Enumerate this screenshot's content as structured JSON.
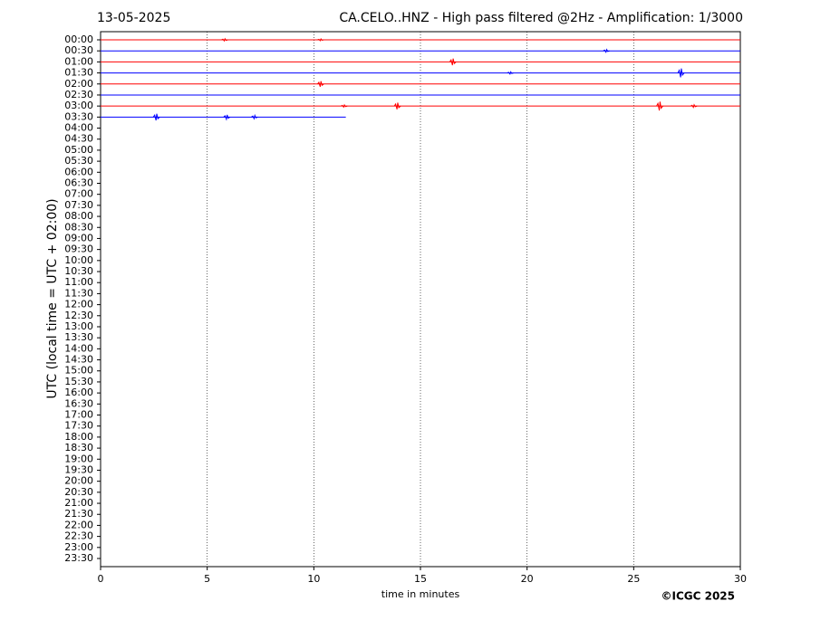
{
  "chart_data": {
    "type": "helicorder",
    "title_left": "13-05-2025",
    "title": "CA.CELO..HNZ - High pass filtered @2Hz - Amplification: 1/3000",
    "ylabel": "UTC (local time = UTC + 02:00)",
    "xlabel": "time in minutes",
    "credit": "©ICGC 2025",
    "xlim": [
      0,
      30
    ],
    "xticks": [
      0,
      5,
      10,
      15,
      20,
      25,
      30
    ],
    "grid": true,
    "rows": [
      "00:00",
      "00:30",
      "01:00",
      "01:30",
      "02:00",
      "02:30",
      "03:00",
      "03:30",
      "04:00",
      "04:30",
      "05:00",
      "05:30",
      "06:00",
      "06:30",
      "07:00",
      "07:30",
      "08:00",
      "08:30",
      "09:00",
      "09:30",
      "10:00",
      "10:30",
      "11:00",
      "11:30",
      "12:00",
      "12:30",
      "13:00",
      "13:30",
      "14:00",
      "14:30",
      "15:00",
      "15:30",
      "16:00",
      "16:30",
      "17:00",
      "17:30",
      "18:00",
      "18:30",
      "19:00",
      "19:30",
      "20:00",
      "20:30",
      "21:00",
      "21:30",
      "22:00",
      "22:30",
      "23:00",
      "23:30"
    ],
    "traces": [
      {
        "color": "#ff0000",
        "x": [
          0,
          30
        ],
        "spikes": [
          {
            "x": 5.8,
            "amp": 0.1
          },
          {
            "x": 10.3,
            "amp": 0.08
          }
        ]
      },
      {
        "color": "#0000ff",
        "x": [
          0,
          30
        ],
        "spikes": [
          {
            "x": 23.7,
            "amp": 0.12
          }
        ]
      },
      {
        "color": "#ff0000",
        "x": [
          0,
          30
        ],
        "spikes": [
          {
            "x": 16.5,
            "amp": 0.3
          }
        ]
      },
      {
        "color": "#0000ff",
        "x": [
          0,
          30
        ],
        "spikes": [
          {
            "x": 19.2,
            "amp": 0.1
          },
          {
            "x": 27.2,
            "amp": 0.4
          }
        ]
      },
      {
        "color": "#ff0000",
        "x": [
          0,
          30
        ],
        "spikes": [
          {
            "x": 10.3,
            "amp": 0.25
          }
        ]
      },
      {
        "color": "#0000ff",
        "x": [
          0,
          30
        ],
        "spikes": []
      },
      {
        "color": "#ff0000",
        "x": [
          0,
          30
        ],
        "spikes": [
          {
            "x": 11.4,
            "amp": 0.1
          },
          {
            "x": 13.9,
            "amp": 0.3
          },
          {
            "x": 26.2,
            "amp": 0.4
          },
          {
            "x": 27.8,
            "amp": 0.12
          }
        ]
      },
      {
        "color": "#0000ff",
        "x": [
          0,
          11.5
        ],
        "spikes": [
          {
            "x": 2.6,
            "amp": 0.3
          },
          {
            "x": 5.9,
            "amp": 0.2
          },
          {
            "x": 7.2,
            "amp": 0.15
          }
        ]
      }
    ]
  }
}
